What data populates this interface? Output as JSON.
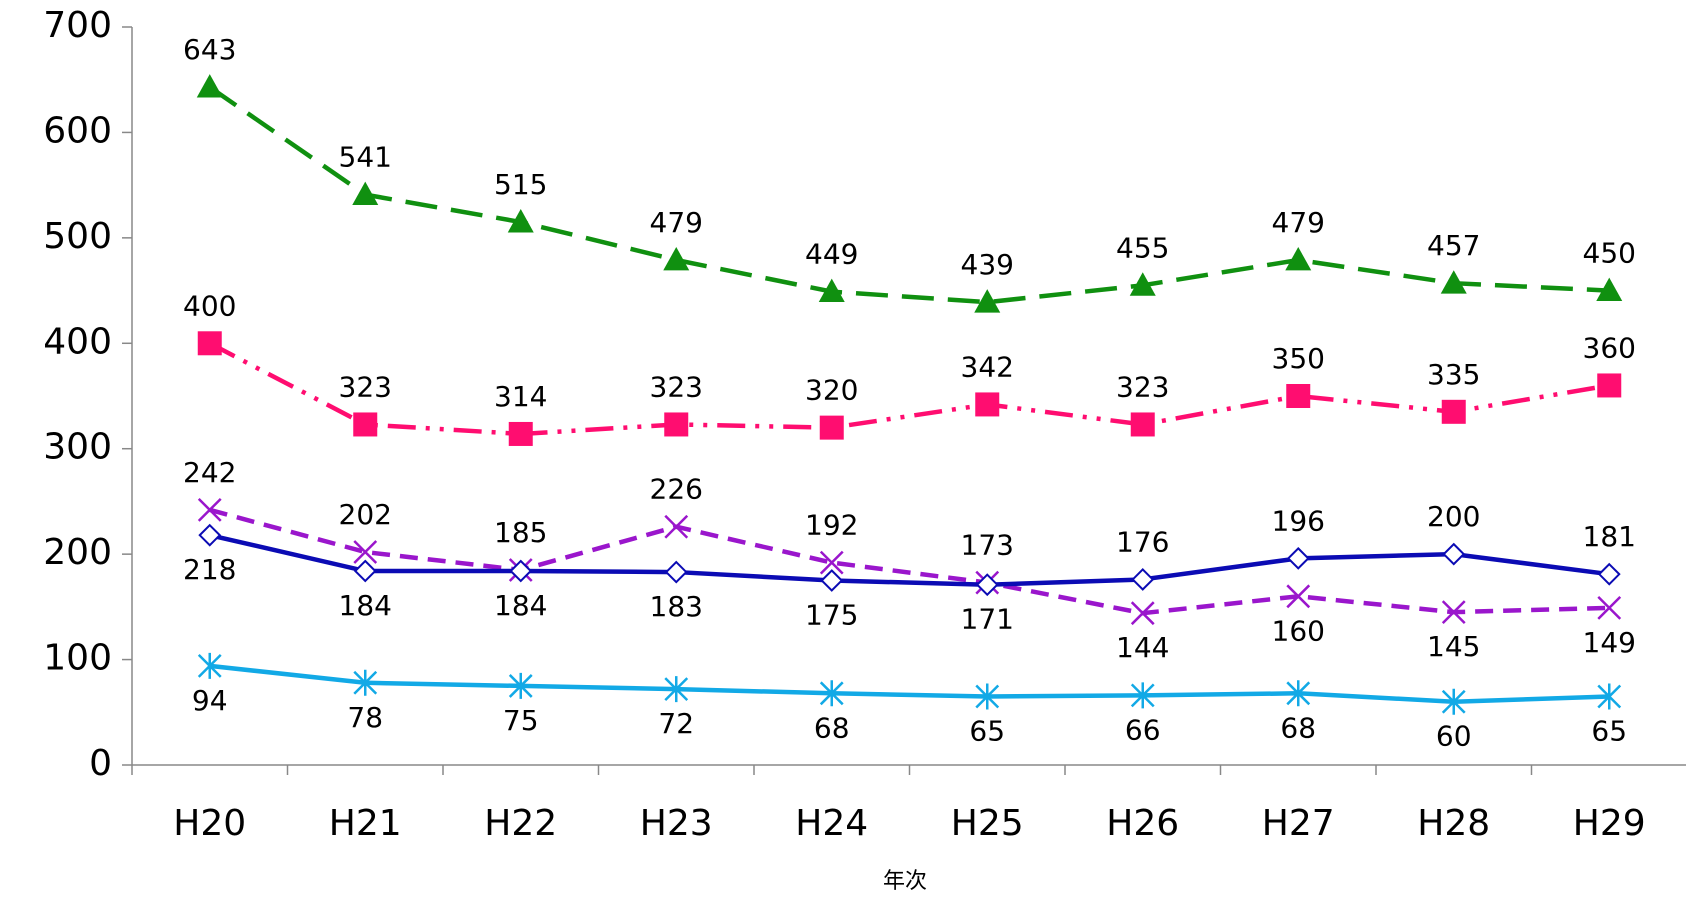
{
  "chart_data": {
    "type": "line",
    "x_label": "年次",
    "categories": [
      "H20",
      "H21",
      "H22",
      "H23",
      "H24",
      "H25",
      "H26",
      "H27",
      "H28",
      "H29"
    ],
    "series": [
      {
        "color": "#109010",
        "marker": "triangle",
        "dash": "dashed",
        "values": [
          643,
          541,
          515,
          479,
          449,
          439,
          455,
          479,
          457,
          450
        ]
      },
      {
        "color": "#ff0d70",
        "marker": "square",
        "dash": "dashdot",
        "values": [
          400,
          323,
          314,
          323,
          320,
          342,
          323,
          350,
          335,
          360
        ]
      },
      {
        "color": "#9a16cc",
        "marker": "x",
        "dash": "shortdash",
        "values": [
          242,
          202,
          185,
          226,
          192,
          173,
          144,
          160,
          145,
          149
        ]
      },
      {
        "color": "#0b0bb4",
        "marker": "diamond",
        "dash": "solid",
        "values": [
          218,
          184,
          184,
          183,
          175,
          171,
          176,
          196,
          200,
          181
        ]
      },
      {
        "color": "#12a9e6",
        "marker": "star",
        "dash": "solid",
        "values": [
          94,
          78,
          75,
          72,
          68,
          65,
          66,
          68,
          60,
          65
        ]
      }
    ],
    "ylim": [
      0,
      700
    ],
    "yticks": [
      0,
      100,
      200,
      300,
      400,
      500,
      600,
      700
    ],
    "grid": false
  }
}
